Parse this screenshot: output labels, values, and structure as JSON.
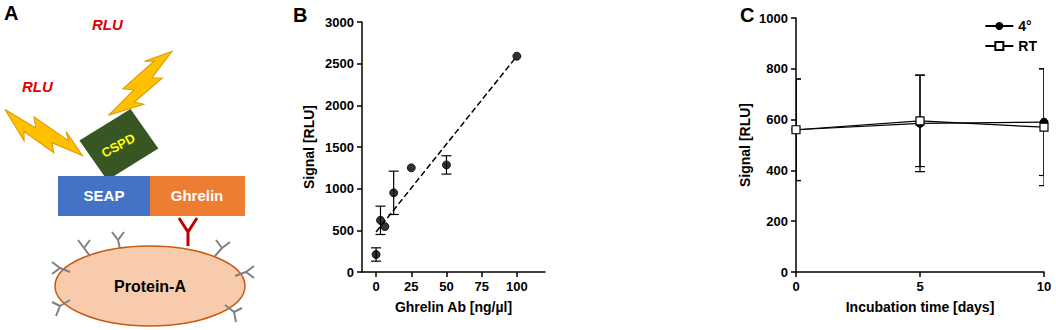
{
  "diagram": {
    "title": "A",
    "labels": {
      "rlu": [
        "RLU",
        "RLU"
      ],
      "cspd": "CSPD",
      "seap": "SEAP",
      "ghrelin": "Ghrelin",
      "protein_a": "Protein-A"
    }
  },
  "chart_data": [
    {
      "type": "scatter",
      "title": "B",
      "x_label": "Ghrelin Ab [ng/µl]",
      "y_label": "Signal [RLU]",
      "x": [
        0,
        3.125,
        6.25,
        12.5,
        25,
        50,
        100
      ],
      "values": [
        210,
        620,
        545,
        950,
        1250,
        1285,
        2590
      ],
      "errors": [
        80,
        170,
        0,
        260,
        0,
        110,
        0
      ],
      "color": "#000000",
      "marker": "circle",
      "trend_line": {
        "x": [
          0,
          100
        ],
        "values": [
          480,
          2590
        ],
        "line_style": "dashed"
      },
      "xlim": [
        -10,
        120
      ],
      "xticks": [
        0,
        25,
        50,
        75,
        100
      ],
      "ylim": [
        0,
        3000
      ],
      "yticks": [
        0,
        500,
        1000,
        1500,
        2000,
        2500,
        3000
      ],
      "grid": false
    },
    {
      "type": "line",
      "title": "C",
      "x_label": "Incubation time [days]",
      "y_label": "Signal [RLU]",
      "x": [
        0,
        5,
        10
      ],
      "series": [
        {
          "name": "4°",
          "color": "#000000",
          "marker": "circle",
          "line_style": "solid",
          "values": [
            560,
            585,
            590
          ],
          "errors": [
            200,
            190,
            210
          ]
        },
        {
          "name": "RT",
          "color": "#000000",
          "marker": "open_square",
          "line_style": "solid",
          "values": [
            560,
            595,
            570
          ],
          "errors": [
            200,
            180,
            230
          ]
        }
      ],
      "xlim": [
        0,
        10
      ],
      "xticks": [
        0,
        5,
        10
      ],
      "ylim": [
        0,
        1000
      ],
      "yticks": [
        0,
        200,
        400,
        600,
        800,
        1000
      ],
      "legend": "top-right",
      "grid": false
    }
  ]
}
